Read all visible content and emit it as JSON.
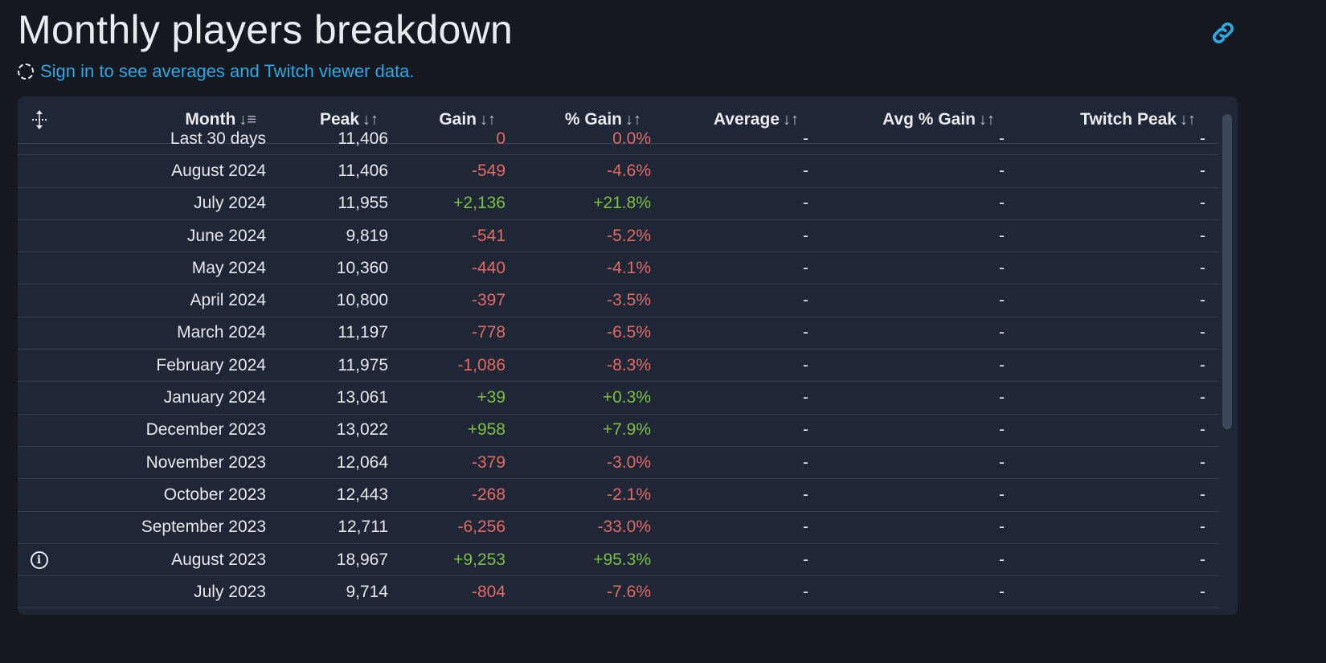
{
  "title": "Monthly players breakdown",
  "signin_text": "Sign in to see averages and Twitch viewer data.",
  "colors": {
    "background": "#15181f",
    "card": "#1f2635",
    "link": "#2aa9e6",
    "negative": "#e46a64",
    "positive": "#7cc043"
  },
  "columns": [
    {
      "label": "Month",
      "sort_icon": "↓⃨",
      "sort": "⭳"
    },
    {
      "label": "Peak",
      "sort": "↓↑"
    },
    {
      "label": "Gain",
      "sort": "↓↑"
    },
    {
      "label": "% Gain",
      "sort": "↓↑"
    },
    {
      "label": "Average",
      "sort": "↓↑"
    },
    {
      "label": "Avg % Gain",
      "sort": "↓↑"
    },
    {
      "label": "Twitch Peak",
      "sort": "↓↑"
    }
  ],
  "month_sort": "↓≡",
  "rows": [
    {
      "month": "Last 30 days",
      "peak": "11,406",
      "gain": "0",
      "pct": "0.0%",
      "avg": "-",
      "avg_pct": "-",
      "twitch": "-",
      "dir": "neg",
      "info": false
    },
    {
      "month": "August 2024",
      "peak": "11,406",
      "gain": "-549",
      "pct": "-4.6%",
      "avg": "-",
      "avg_pct": "-",
      "twitch": "-",
      "dir": "neg",
      "info": false
    },
    {
      "month": "July 2024",
      "peak": "11,955",
      "gain": "+2,136",
      "pct": "+21.8%",
      "avg": "-",
      "avg_pct": "-",
      "twitch": "-",
      "dir": "pos",
      "info": false
    },
    {
      "month": "June 2024",
      "peak": "9,819",
      "gain": "-541",
      "pct": "-5.2%",
      "avg": "-",
      "avg_pct": "-",
      "twitch": "-",
      "dir": "neg",
      "info": false
    },
    {
      "month": "May 2024",
      "peak": "10,360",
      "gain": "-440",
      "pct": "-4.1%",
      "avg": "-",
      "avg_pct": "-",
      "twitch": "-",
      "dir": "neg",
      "info": false
    },
    {
      "month": "April 2024",
      "peak": "10,800",
      "gain": "-397",
      "pct": "-3.5%",
      "avg": "-",
      "avg_pct": "-",
      "twitch": "-",
      "dir": "neg",
      "info": false
    },
    {
      "month": "March 2024",
      "peak": "11,197",
      "gain": "-778",
      "pct": "-6.5%",
      "avg": "-",
      "avg_pct": "-",
      "twitch": "-",
      "dir": "neg",
      "info": false
    },
    {
      "month": "February 2024",
      "peak": "11,975",
      "gain": "-1,086",
      "pct": "-8.3%",
      "avg": "-",
      "avg_pct": "-",
      "twitch": "-",
      "dir": "neg",
      "info": false
    },
    {
      "month": "January 2024",
      "peak": "13,061",
      "gain": "+39",
      "pct": "+0.3%",
      "avg": "-",
      "avg_pct": "-",
      "twitch": "-",
      "dir": "pos",
      "info": false
    },
    {
      "month": "December 2023",
      "peak": "13,022",
      "gain": "+958",
      "pct": "+7.9%",
      "avg": "-",
      "avg_pct": "-",
      "twitch": "-",
      "dir": "pos",
      "info": false
    },
    {
      "month": "November 2023",
      "peak": "12,064",
      "gain": "-379",
      "pct": "-3.0%",
      "avg": "-",
      "avg_pct": "-",
      "twitch": "-",
      "dir": "neg",
      "info": false
    },
    {
      "month": "October 2023",
      "peak": "12,443",
      "gain": "-268",
      "pct": "-2.1%",
      "avg": "-",
      "avg_pct": "-",
      "twitch": "-",
      "dir": "neg",
      "info": false
    },
    {
      "month": "September 2023",
      "peak": "12,711",
      "gain": "-6,256",
      "pct": "-33.0%",
      "avg": "-",
      "avg_pct": "-",
      "twitch": "-",
      "dir": "neg",
      "info": false
    },
    {
      "month": "August 2023",
      "peak": "18,967",
      "gain": "+9,253",
      "pct": "+95.3%",
      "avg": "-",
      "avg_pct": "-",
      "twitch": "-",
      "dir": "pos",
      "info": true,
      "info_glyph": "i"
    },
    {
      "month": "July 2023",
      "peak": "9,714",
      "gain": "-804",
      "pct": "-7.6%",
      "avg": "-",
      "avg_pct": "-",
      "twitch": "-",
      "dir": "neg",
      "info": false
    }
  ]
}
